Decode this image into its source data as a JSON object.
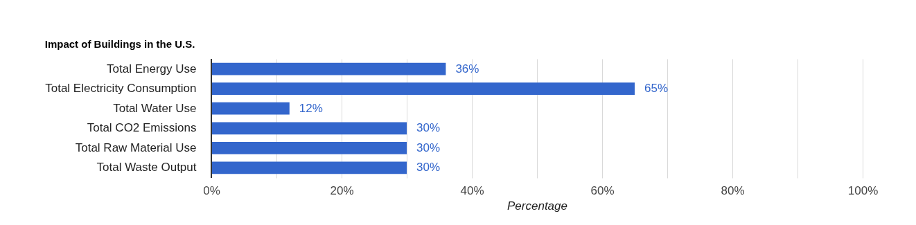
{
  "chart_data": {
    "type": "bar",
    "orientation": "horizontal",
    "title": "Impact of Buildings in the U.S.",
    "xlabel": "Percentage",
    "categories": [
      "Total Energy Use",
      "Total Electricity Consumption",
      "Total Water Use",
      "Total CO2 Emissions",
      "Total Raw Material Use",
      "Total Waste Output"
    ],
    "values": [
      36,
      65,
      12,
      30,
      30,
      30
    ],
    "value_labels": [
      "36%",
      "65%",
      "12%",
      "30%",
      "30%",
      "30%"
    ],
    "color": "#3366cc",
    "xlim": [
      0,
      100
    ],
    "xticks": [
      {
        "value": 0,
        "label": "0%"
      },
      {
        "value": 10,
        "label": null
      },
      {
        "value": 20,
        "label": "20%"
      },
      {
        "value": 30,
        "label": null
      },
      {
        "value": 40,
        "label": "40%"
      },
      {
        "value": 50,
        "label": null
      },
      {
        "value": 60,
        "label": "60%"
      },
      {
        "value": 70,
        "label": null
      },
      {
        "value": 80,
        "label": "80%"
      },
      {
        "value": 90,
        "label": null
      },
      {
        "value": 100,
        "label": "100%"
      }
    ],
    "grid": "x"
  }
}
